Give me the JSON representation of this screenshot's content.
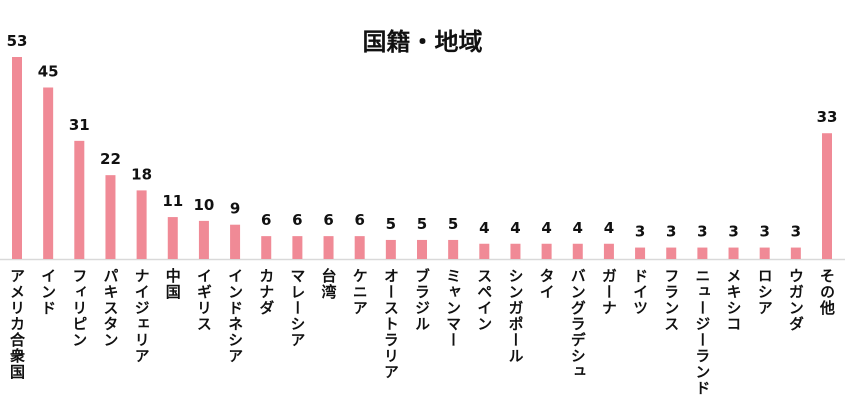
{
  "chart_data": {
    "type": "bar",
    "title": "国籍・地域",
    "categories": [
      "アメリカ合衆国",
      "インド",
      "フィリピン",
      "パキスタン",
      "ナイジェリア",
      "中国",
      "イギリス",
      "インドネシア",
      "カナダ",
      "マレーシア",
      "台湾",
      "ケニア",
      "オーストラリア",
      "ブラジル",
      "ミャンマー",
      "スペイン",
      "シンガポール",
      "タイ",
      "バングラデシュ",
      "ガーナ",
      "ドイツ",
      "フランス",
      "ニュージーランド",
      "メキシコ",
      "ロシア",
      "ウガンダ",
      "その他"
    ],
    "values": [
      53,
      45,
      31,
      22,
      18,
      11,
      10,
      9,
      6,
      6,
      6,
      6,
      5,
      5,
      5,
      4,
      4,
      4,
      4,
      4,
      3,
      3,
      3,
      3,
      3,
      3,
      33
    ],
    "ylim": [
      0,
      53
    ],
    "grid": false,
    "data_labels": true,
    "bar_color": "#f08a96",
    "axis_color": "#d9d9d9"
  }
}
